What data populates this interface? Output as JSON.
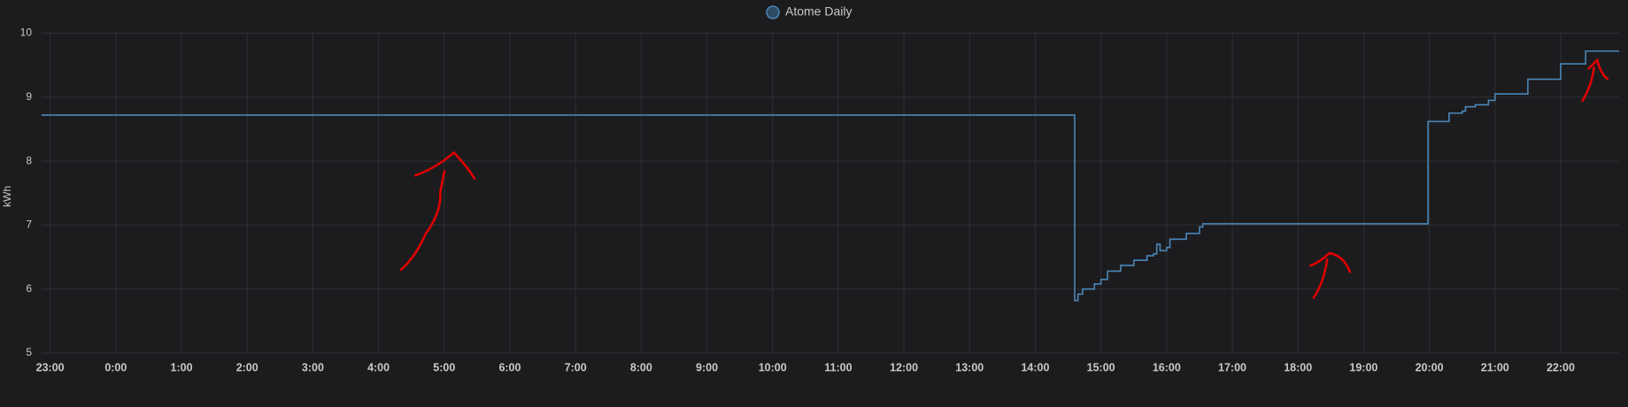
{
  "chart_data": {
    "type": "line",
    "step": true,
    "y_label": "kWh",
    "x": [
      22.87,
      38.585,
      38.6,
      38.65,
      38.72,
      38.9,
      39.0,
      39.1,
      39.3,
      39.5,
      39.7,
      39.8,
      39.85,
      39.9,
      40.0,
      40.05,
      40.3,
      40.5,
      40.55,
      43.97,
      43.98,
      44.3,
      44.5,
      44.55,
      44.7,
      44.9,
      45.0,
      45.5,
      46.0,
      46.38,
      46.89
    ],
    "series": [
      {
        "name": "Atome Daily",
        "color": "#4a86b8",
        "values": [
          8.72,
          8.72,
          5.82,
          5.92,
          6.0,
          6.08,
          6.15,
          6.28,
          6.37,
          6.45,
          6.52,
          6.55,
          6.7,
          6.6,
          6.65,
          6.78,
          6.87,
          6.97,
          7.02,
          7.02,
          8.62,
          8.75,
          8.78,
          8.85,
          8.88,
          8.95,
          9.05,
          9.28,
          9.52,
          9.72,
          9.72
        ]
      }
    ],
    "xlim": [
      22.87,
      46.89
    ],
    "xticks": [
      {
        "value": 23,
        "label": "23:00"
      },
      {
        "value": 24,
        "label": "0:00"
      },
      {
        "value": 25,
        "label": "1:00"
      },
      {
        "value": 26,
        "label": "2:00"
      },
      {
        "value": 27,
        "label": "3:00"
      },
      {
        "value": 28,
        "label": "4:00"
      },
      {
        "value": 29,
        "label": "5:00"
      },
      {
        "value": 30,
        "label": "6:00"
      },
      {
        "value": 31,
        "label": "7:00"
      },
      {
        "value": 32,
        "label": "8:00"
      },
      {
        "value": 33,
        "label": "9:00"
      },
      {
        "value": 34,
        "label": "10:00"
      },
      {
        "value": 35,
        "label": "11:00"
      },
      {
        "value": 36,
        "label": "12:00"
      },
      {
        "value": 37,
        "label": "13:00"
      },
      {
        "value": 38,
        "label": "14:00"
      },
      {
        "value": 39,
        "label": "15:00"
      },
      {
        "value": 40,
        "label": "16:00"
      },
      {
        "value": 41,
        "label": "17:00"
      },
      {
        "value": 42,
        "label": "18:00"
      },
      {
        "value": 43,
        "label": "19:00"
      },
      {
        "value": 44,
        "label": "20:00"
      },
      {
        "value": 45,
        "label": "21:00"
      },
      {
        "value": 46,
        "label": "22:00"
      }
    ],
    "ylim": [
      5,
      10
    ],
    "yticks": [
      5,
      6,
      7,
      8,
      9,
      10
    ],
    "grid": true
  }
}
